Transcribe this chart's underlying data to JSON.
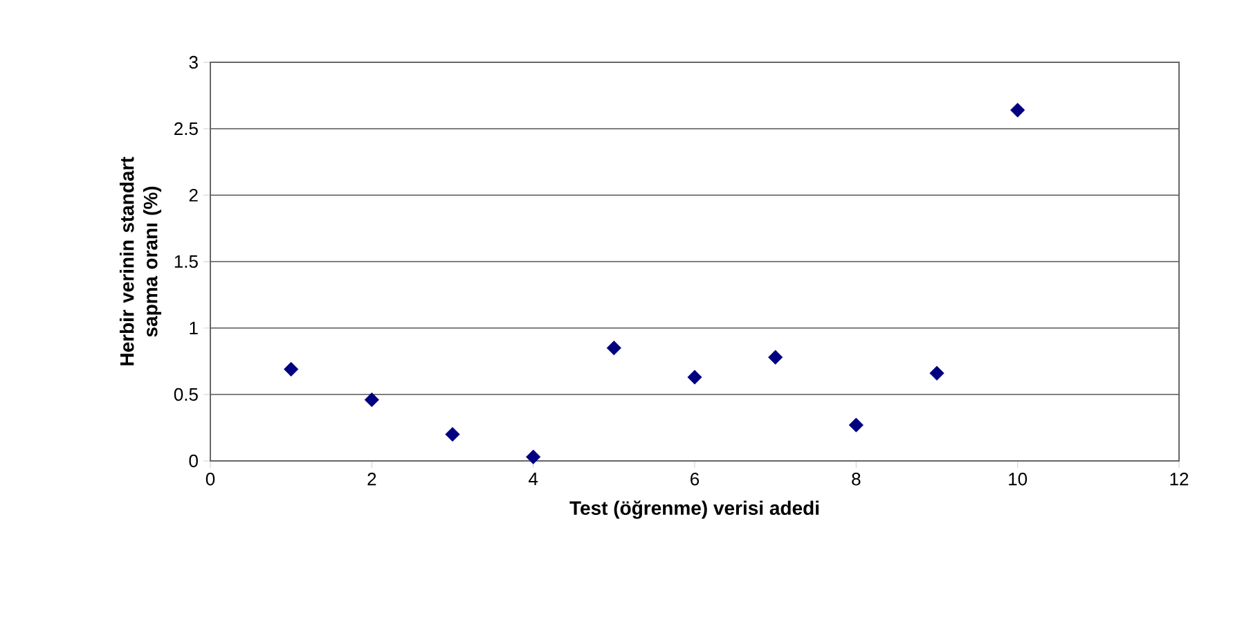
{
  "chart_data": {
    "type": "scatter",
    "xlabel": "Test (öğrenme) verisi adedi",
    "ylabel": "Herbir verinin standart sapma oranı (%)",
    "x": [
      1,
      2,
      3,
      4,
      5,
      6,
      7,
      8,
      9,
      10
    ],
    "series": [
      {
        "color": "#000080",
        "values": [
          0.69,
          0.46,
          0.2,
          0.03,
          0.85,
          0.63,
          0.78,
          0.27,
          0.66,
          2.64
        ]
      }
    ],
    "xlim": [
      0,
      12
    ],
    "ylim": [
      0,
      3
    ],
    "xticks": [
      0,
      2,
      4,
      6,
      8,
      10,
      12
    ],
    "yticks": [
      0,
      0.5,
      1,
      1.5,
      2,
      2.5,
      3
    ],
    "grid": "y",
    "marker": "diamond"
  }
}
